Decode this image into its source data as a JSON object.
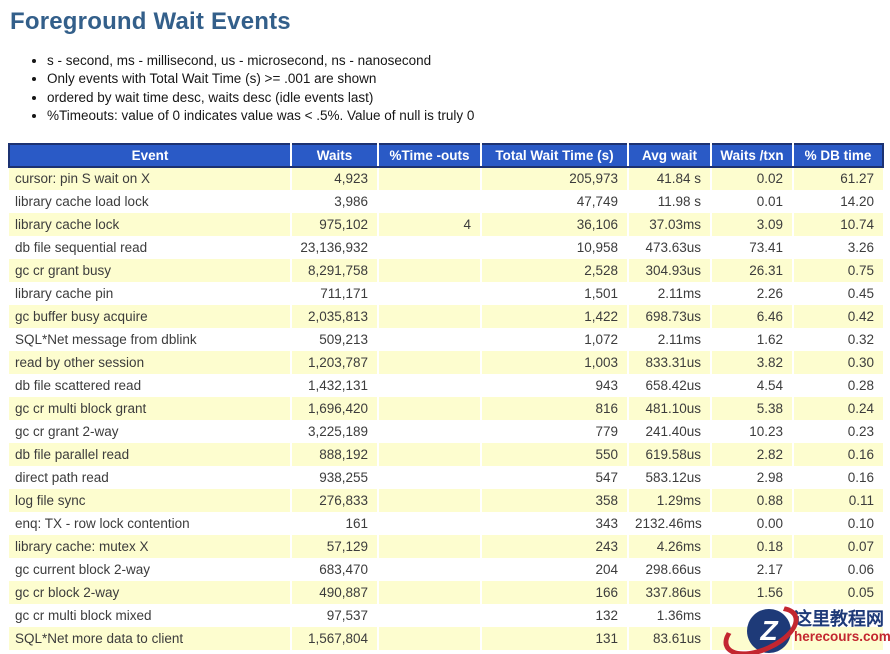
{
  "page": {
    "title": "Foreground Wait Events",
    "notes": [
      "s - second, ms - millisecond, us - microsecond, ns - nanosecond",
      "Only events with Total Wait Time (s) >= .001 are shown",
      "ordered by wait time desc, waits desc (idle events last)",
      "%Timeouts: value of 0 indicates value was < .5%. Value of null is truly 0"
    ]
  },
  "table": {
    "columns": [
      "Event",
      "Waits",
      "%Time -outs",
      "Total Wait Time (s)",
      "Avg wait",
      "Waits /txn",
      "% DB time"
    ],
    "rows": [
      [
        "cursor: pin S wait on X",
        "4,923",
        "",
        "205,973",
        "41.84 s",
        "0.02",
        "61.27"
      ],
      [
        "library cache load lock",
        "3,986",
        "",
        "47,749",
        "11.98 s",
        "0.01",
        "14.20"
      ],
      [
        "library cache lock",
        "975,102",
        "4",
        "36,106",
        "37.03ms",
        "3.09",
        "10.74"
      ],
      [
        "db file sequential read",
        "23,136,932",
        "",
        "10,958",
        "473.63us",
        "73.41",
        "3.26"
      ],
      [
        "gc cr grant busy",
        "8,291,758",
        "",
        "2,528",
        "304.93us",
        "26.31",
        "0.75"
      ],
      [
        "library cache pin",
        "711,171",
        "",
        "1,501",
        "2.11ms",
        "2.26",
        "0.45"
      ],
      [
        "gc buffer busy acquire",
        "2,035,813",
        "",
        "1,422",
        "698.73us",
        "6.46",
        "0.42"
      ],
      [
        "SQL*Net message from dblink",
        "509,213",
        "",
        "1,072",
        "2.11ms",
        "1.62",
        "0.32"
      ],
      [
        "read by other session",
        "1,203,787",
        "",
        "1,003",
        "833.31us",
        "3.82",
        "0.30"
      ],
      [
        "db file scattered read",
        "1,432,131",
        "",
        "943",
        "658.42us",
        "4.54",
        "0.28"
      ],
      [
        "gc cr multi block grant",
        "1,696,420",
        "",
        "816",
        "481.10us",
        "5.38",
        "0.24"
      ],
      [
        "gc cr grant 2-way",
        "3,225,189",
        "",
        "779",
        "241.40us",
        "10.23",
        "0.23"
      ],
      [
        "db file parallel read",
        "888,192",
        "",
        "550",
        "619.58us",
        "2.82",
        "0.16"
      ],
      [
        "direct path read",
        "938,255",
        "",
        "547",
        "583.12us",
        "2.98",
        "0.16"
      ],
      [
        "log file sync",
        "276,833",
        "",
        "358",
        "1.29ms",
        "0.88",
        "0.11"
      ],
      [
        "enq: TX - row lock contention",
        "161",
        "",
        "343",
        "2132.46ms",
        "0.00",
        "0.10"
      ],
      [
        "library cache: mutex X",
        "57,129",
        "",
        "243",
        "4.26ms",
        "0.18",
        "0.07"
      ],
      [
        "gc current block 2-way",
        "683,470",
        "",
        "204",
        "298.66us",
        "2.17",
        "0.06"
      ],
      [
        "gc cr block 2-way",
        "490,887",
        "",
        "166",
        "337.86us",
        "1.56",
        "0.05"
      ],
      [
        "gc cr multi block mixed",
        "97,537",
        "",
        "132",
        "1.36ms",
        "",
        ""
      ],
      [
        "SQL*Net more data to client",
        "1,567,804",
        "",
        "131",
        "83.61us",
        "",
        ""
      ]
    ]
  },
  "watermark": {
    "logo_letter": "Z",
    "site_name": "这里教程网",
    "site_url": "herecours.com"
  },
  "colors": {
    "header_bg": "#2a5ac6",
    "header_border": "#1c3272",
    "row_alt_bg": "#fdfdcf",
    "title_color": "#335f8a",
    "watermark_red": "#c32630",
    "watermark_navy": "#1e3a78"
  }
}
